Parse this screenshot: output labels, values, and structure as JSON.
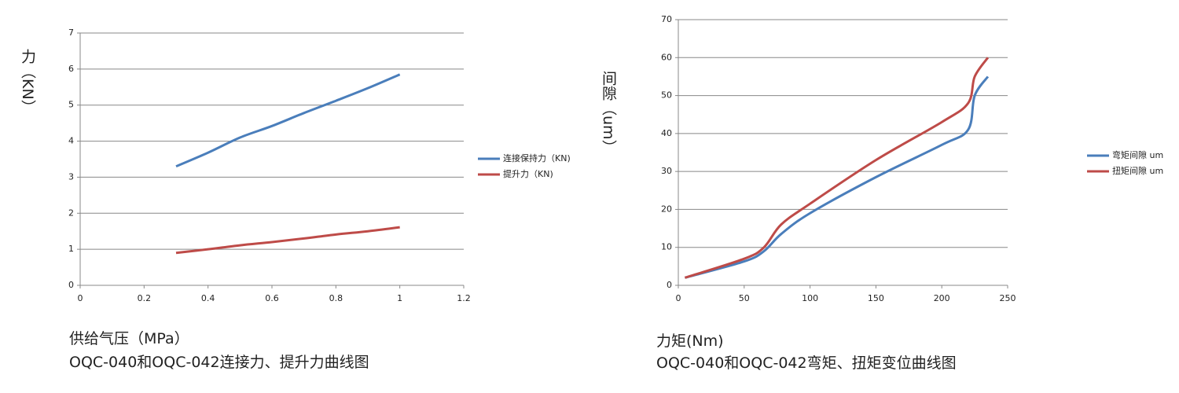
{
  "chart_data": [
    {
      "type": "line",
      "y_label": "力（KN）",
      "x_label": "供给气压（MPa）",
      "caption": "OQC-040和OQC-042连接力、提升力曲线图",
      "x": [
        0.3,
        0.4,
        0.5,
        0.6,
        0.7,
        0.8,
        0.9,
        1.0
      ],
      "series": [
        {
          "name": "连接保持力（KN)",
          "color": "#4a7ebb",
          "values": [
            3.3,
            3.68,
            4.1,
            4.42,
            4.78,
            5.12,
            5.47,
            5.85
          ]
        },
        {
          "name": "提升力（KN)",
          "color": "#be4b48",
          "values": [
            0.9,
            1.0,
            1.11,
            1.2,
            1.3,
            1.41,
            1.5,
            1.61
          ]
        }
      ],
      "xlim": [
        0,
        1.2
      ],
      "xticks": [
        0,
        0.2,
        0.4,
        0.6,
        0.8,
        1,
        1.2
      ],
      "ylim": [
        0,
        7
      ],
      "yticks": [
        0,
        1,
        2,
        3,
        4,
        5,
        6,
        7
      ],
      "grid": true
    },
    {
      "type": "line",
      "y_label": "间隙（um）",
      "x_label": "力矩(Nm)",
      "caption": "OQC-040和OQC-042弯矩、扭矩变位曲线图",
      "x": [
        5,
        50,
        65,
        78,
        100,
        150,
        200,
        220,
        225,
        235
      ],
      "series": [
        {
          "name": "弯矩间隙 um",
          "color": "#4a7ebb",
          "values": [
            2,
            6.3,
            9,
            13.5,
            19,
            28.5,
            37,
            41,
            50,
            55
          ]
        },
        {
          "name": "扭矩间隙 um",
          "color": "#be4b48",
          "values": [
            2,
            7,
            10,
            16,
            21.5,
            33,
            43,
            48,
            55,
            60
          ]
        }
      ],
      "xlim": [
        0,
        250
      ],
      "xticks": [
        0,
        50,
        100,
        150,
        200,
        250
      ],
      "ylim": [
        0,
        70
      ],
      "yticks": [
        0,
        10,
        20,
        30,
        40,
        50,
        60,
        70
      ],
      "grid": true
    }
  ]
}
